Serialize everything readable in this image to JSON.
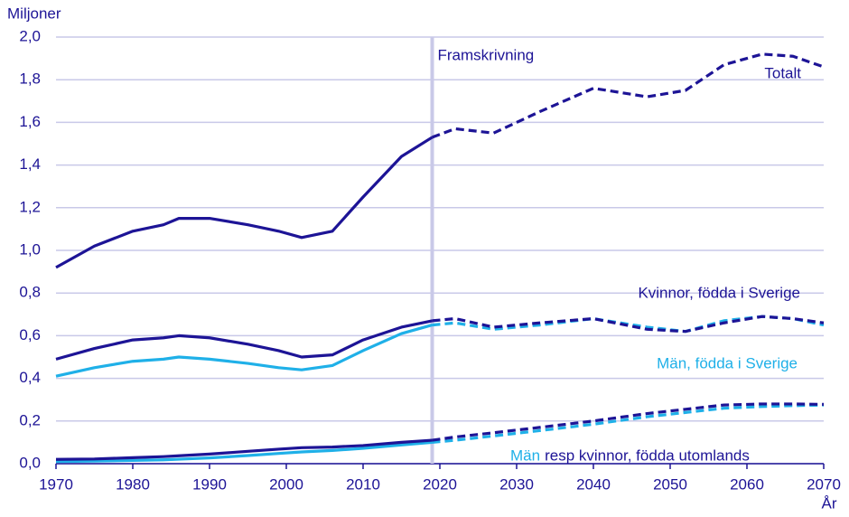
{
  "chart_data": {
    "type": "line",
    "y_label": "Miljoner",
    "x_label": "År",
    "forecast_label": "Framskrivning",
    "forecast_x": 2019,
    "x": [
      1970,
      1975,
      1980,
      1984,
      1986,
      1990,
      1995,
      1999,
      2002,
      2006,
      2010,
      2015,
      2019,
      2022,
      2027,
      2033,
      2040,
      2047,
      2052,
      2057,
      2062,
      2066,
      2070
    ],
    "series": [
      {
        "name": "Totalt",
        "color": "#1d1496",
        "values": [
          0.92,
          1.02,
          1.09,
          1.12,
          1.15,
          1.15,
          1.12,
          1.09,
          1.06,
          1.09,
          1.25,
          1.44,
          1.53,
          1.57,
          1.55,
          1.65,
          1.76,
          1.72,
          1.75,
          1.87,
          1.92,
          1.91,
          1.86
        ]
      },
      {
        "name": "Män, födda i Sverige",
        "color": "#1fb0e8",
        "values": [
          0.41,
          0.45,
          0.48,
          0.49,
          0.5,
          0.49,
          0.47,
          0.45,
          0.44,
          0.46,
          0.53,
          0.61,
          0.65,
          0.66,
          0.63,
          0.65,
          0.68,
          0.64,
          0.62,
          0.67,
          0.69,
          0.68,
          0.65
        ]
      },
      {
        "name": "Kvinnor, födda i Sverige",
        "color": "#1d1496",
        "values": [
          0.49,
          0.54,
          0.58,
          0.59,
          0.6,
          0.59,
          0.56,
          0.53,
          0.5,
          0.51,
          0.58,
          0.64,
          0.67,
          0.68,
          0.64,
          0.66,
          0.68,
          0.63,
          0.62,
          0.66,
          0.69,
          0.68,
          0.66
        ]
      },
      {
        "name": "Män",
        "color": "#1fb0e8",
        "values": [
          0.01,
          0.012,
          0.015,
          0.018,
          0.021,
          0.027,
          0.038,
          0.048,
          0.055,
          0.062,
          0.072,
          0.088,
          0.1,
          0.11,
          0.13,
          0.155,
          0.185,
          0.22,
          0.24,
          0.26,
          0.268,
          0.272,
          0.275
        ]
      },
      {
        "name": "resp kvinnor, födda utomlands",
        "color": "#1d1496",
        "values": [
          0.02,
          0.022,
          0.028,
          0.033,
          0.037,
          0.045,
          0.058,
          0.068,
          0.075,
          0.078,
          0.085,
          0.1,
          0.11,
          0.125,
          0.145,
          0.17,
          0.2,
          0.235,
          0.255,
          0.275,
          0.28,
          0.28,
          0.278
        ]
      }
    ],
    "xlim": [
      1970,
      2070
    ],
    "xticks": [
      1970,
      1980,
      1990,
      2000,
      2010,
      2020,
      2030,
      2040,
      2050,
      2060,
      2070
    ],
    "ylim": [
      0,
      2
    ],
    "yticks": [
      {
        "value": 0,
        "label": "0,0"
      },
      {
        "value": 0.2,
        "label": "0,2"
      },
      {
        "value": 0.4,
        "label": "0,4"
      },
      {
        "value": 0.6,
        "label": "0,6"
      },
      {
        "value": 0.8,
        "label": "0,8"
      },
      {
        "value": 1,
        "label": "1,0"
      },
      {
        "value": 1.2,
        "label": "1,2"
      },
      {
        "value": 1.4,
        "label": "1,4"
      },
      {
        "value": 1.6,
        "label": "1,6"
      },
      {
        "value": 1.8,
        "label": "1,8"
      },
      {
        "value": 2,
        "label": "2,0"
      }
    ],
    "grid": true
  }
}
